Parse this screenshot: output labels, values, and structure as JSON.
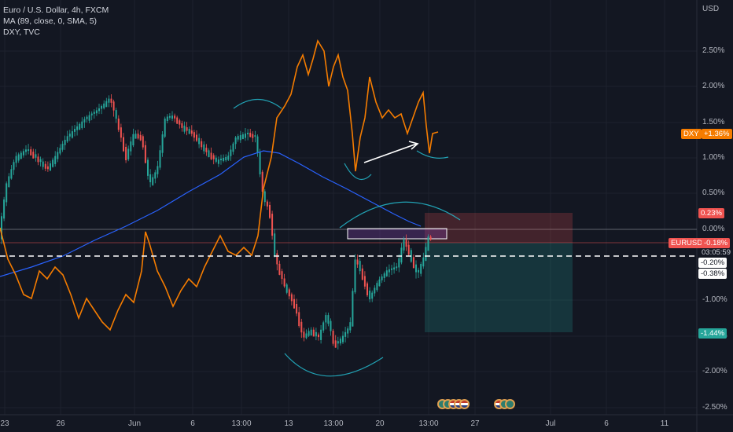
{
  "legend": {
    "symbol_line": "Euro / U.S. Dollar, 4h, FXCM",
    "ma_line": "MA (89, close, 0, SMA, 5)",
    "dxy_line": "DXY, TVC"
  },
  "yaxis": {
    "currency": "USD",
    "ticks": [
      "2.50%",
      "2.00%",
      "1.50%",
      "1.00%",
      "0.50%",
      "0.00%",
      "-1.00%",
      "-1.50%",
      "-2.00%",
      "-2.50%"
    ]
  },
  "xaxis": {
    "ticks": [
      "23",
      "26",
      "Jun",
      "6",
      "13:00",
      "13",
      "13:00",
      "20",
      "13:00",
      "27",
      "Jul",
      "6",
      "11"
    ]
  },
  "tags": {
    "dxy_name": "DXY",
    "dxy_value": "+1.36%",
    "target_top": "0.23%",
    "eurusd_name": "EURUSD",
    "eurusd_value": "-0.18%",
    "countdown": "03:05:59",
    "entry": "-0.20%",
    "dashed_level": "-0.38%",
    "stop_bottom": "-1.44%"
  },
  "colors": {
    "background": "#131722",
    "up": "#26a69a",
    "down": "#ef5350",
    "dxy": "#f57c00",
    "ma": "#2962ff"
  }
}
